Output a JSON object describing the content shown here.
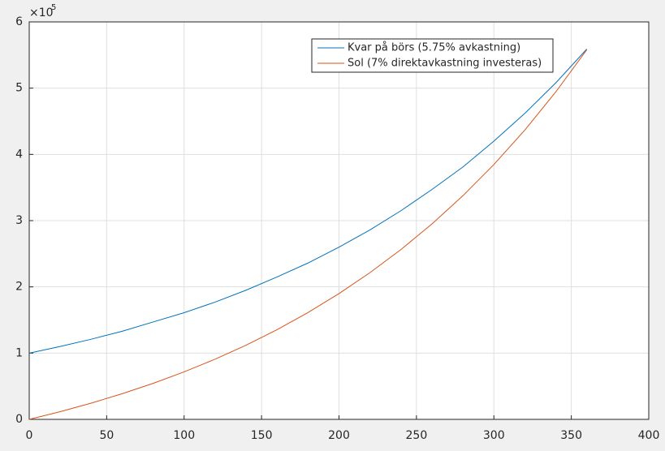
{
  "chart_data": {
    "type": "line",
    "x": [
      0,
      20,
      40,
      60,
      80,
      100,
      120,
      140,
      160,
      180,
      200,
      220,
      240,
      260,
      280,
      300,
      320,
      340,
      360
    ],
    "series": [
      {
        "name": "Kvar på börs (5.75% avkastning)",
        "color": "#0072bd",
        "values": [
          100000,
          110000,
          121000,
          133000,
          147000,
          161000,
          177000,
          195000,
          215000,
          236000,
          260000,
          286000,
          315000,
          347000,
          381000,
          420000,
          462000,
          508000,
          559000
        ]
      },
      {
        "name": "Sol (7% direktavkastning investeras)",
        "color": "#d95319",
        "values": [
          0,
          11600,
          24500,
          38700,
          54300,
          71700,
          90800,
          112000,
          135400,
          161300,
          189900,
          221500,
          256400,
          295000,
          337600,
          384700,
          436800,
          494400,
          558000
        ]
      }
    ],
    "xlim": [
      0,
      400
    ],
    "xticks": [
      0,
      50,
      100,
      150,
      200,
      250,
      300,
      350,
      400
    ],
    "ylim": [
      0,
      600000
    ],
    "yticks": [
      {
        "value": 0,
        "label": "0"
      },
      {
        "value": 100000,
        "label": "1"
      },
      {
        "value": 200000,
        "label": "2"
      },
      {
        "value": 300000,
        "label": "3"
      },
      {
        "value": 400000,
        "label": "4"
      },
      {
        "value": 500000,
        "label": "5"
      },
      {
        "value": 600000,
        "label": "6"
      }
    ],
    "y_multiplier": "×10",
    "y_multiplier_exponent": "5",
    "grid": true,
    "legend": "top-right"
  }
}
